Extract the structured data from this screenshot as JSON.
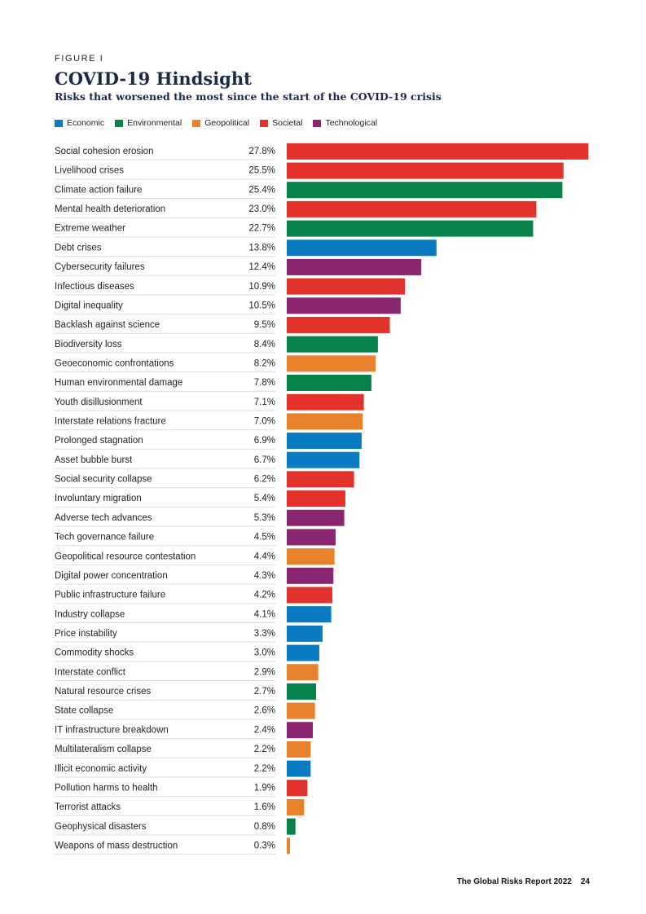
{
  "header": {
    "figure_label": "FIGURE I"
  },
  "footer": {
    "report_title": "The Global Risks Report 2022",
    "page_number": "24"
  },
  "colors": {
    "Economic": "#0a7bc1",
    "Environmental": "#06824a",
    "Geopolitical": "#e8822c",
    "Societal": "#e3322b",
    "Technological": "#8a2571"
  },
  "chart_data": {
    "type": "bar",
    "orientation": "horizontal",
    "title": "COVID-19 Hindsight",
    "subtitle": "Risks that worsened the most since the start of the COVID-19 crisis",
    "legend": [
      "Economic",
      "Environmental",
      "Geopolitical",
      "Societal",
      "Technological"
    ],
    "legend_position": "top-left",
    "value_suffix": "%",
    "xlim": [
      0,
      28
    ],
    "categories": [
      "Social cohesion erosion",
      "Livelihood crises",
      "Climate action failure",
      "Mental health deterioration",
      "Extreme weather",
      "Debt crises",
      "Cybersecurity failures",
      "Infectious diseases",
      "Digital inequality",
      "Backlash against science",
      "Biodiversity loss",
      "Geoeconomic confrontations",
      "Human environmental damage",
      "Youth disillusionment",
      "Interstate relations fracture",
      "Prolonged stagnation",
      "Asset bubble burst",
      "Social security collapse",
      "Involuntary migration",
      "Adverse tech advances",
      "Tech governance failure",
      "Geopolitical resource contestation",
      "Digital power concentration",
      "Public infrastructure failure",
      "Industry collapse",
      "Price instability",
      "Commodity shocks",
      "Interstate conflict",
      "Natural resource crises",
      "State collapse",
      "IT infrastructure breakdown",
      "Multilateralism collapse",
      "Illicit economic activity",
      "Pollution harms to health",
      "Terrorist attacks",
      "Geophysical disasters",
      "Weapons of mass destruction"
    ],
    "values": [
      27.8,
      25.5,
      25.4,
      23.0,
      22.7,
      13.8,
      12.4,
      10.9,
      10.5,
      9.5,
      8.4,
      8.2,
      7.8,
      7.1,
      7.0,
      6.9,
      6.7,
      6.2,
      5.4,
      5.3,
      4.5,
      4.4,
      4.3,
      4.2,
      4.1,
      3.3,
      3.0,
      2.9,
      2.7,
      2.6,
      2.4,
      2.2,
      2.2,
      1.9,
      1.6,
      0.8,
      0.3
    ],
    "value_labels": [
      "27.8%",
      "25.5%",
      "25.4%",
      "23.0%",
      "22.7%",
      "13.8%",
      "12.4%",
      "10.9%",
      "10.5%",
      "9.5%",
      "8.4%",
      "8.2%",
      "7.8%",
      "7.1%",
      "7.0%",
      "6.9%",
      "6.7%",
      "6.2%",
      "5.4%",
      "5.3%",
      "4.5%",
      "4.4%",
      "4.3%",
      "4.2%",
      "4.1%",
      "3.3%",
      "3.0%",
      "2.9%",
      "2.7%",
      "2.6%",
      "2.4%",
      "2.2%",
      "2.2%",
      "1.9%",
      "1.6%",
      "0.8%",
      "0.3%"
    ],
    "groups": [
      "Societal",
      "Societal",
      "Environmental",
      "Societal",
      "Environmental",
      "Economic",
      "Technological",
      "Societal",
      "Technological",
      "Societal",
      "Environmental",
      "Geopolitical",
      "Environmental",
      "Societal",
      "Geopolitical",
      "Economic",
      "Economic",
      "Societal",
      "Societal",
      "Technological",
      "Technological",
      "Geopolitical",
      "Technological",
      "Societal",
      "Economic",
      "Economic",
      "Economic",
      "Geopolitical",
      "Environmental",
      "Geopolitical",
      "Technological",
      "Geopolitical",
      "Economic",
      "Societal",
      "Geopolitical",
      "Environmental",
      "Geopolitical"
    ]
  }
}
